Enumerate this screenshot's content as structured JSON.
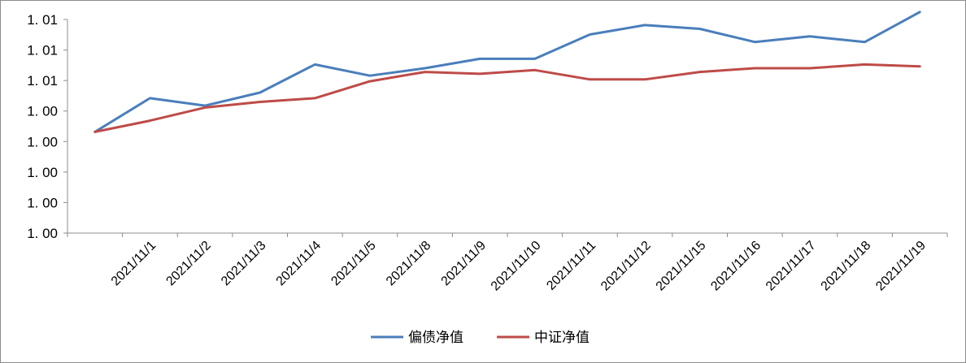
{
  "chart_data": {
    "type": "line",
    "title": "",
    "xlabel": "",
    "ylabel": "",
    "categories": [
      "",
      "2021/11/1",
      "2021/11/2",
      "2021/11/3",
      "2021/11/4",
      "2021/11/5",
      "2021/11/8",
      "2021/11/9",
      "2021/11/10",
      "2021/11/11",
      "2021/11/12",
      "2021/11/15",
      "2021/11/16",
      "2021/11/17",
      "2021/11/18",
      "2021/11/19"
    ],
    "y_tick_labels": [
      "1. 01",
      "1. 01",
      "1. 01",
      "1. 00",
      "1. 00",
      "1. 00",
      "1. 00",
      "1. 00"
    ],
    "ylim": [
      0.9986,
      1.01
    ],
    "grid": false,
    "legend_position": "bottom",
    "series": [
      {
        "name": "偏债净值",
        "color": "#4a7ebb",
        "values": [
          1.004,
          1.0058,
          1.0054,
          1.0061,
          1.0076,
          1.007,
          1.0074,
          1.0079,
          1.0079,
          1.0092,
          1.0097,
          1.0095,
          1.0088,
          1.0091,
          1.0088,
          1.0104
        ]
      },
      {
        "name": "中证净值",
        "color": "#be4b48",
        "values": [
          1.004,
          1.0046,
          1.0053,
          1.0056,
          1.0058,
          1.0067,
          1.0072,
          1.0071,
          1.0073,
          1.0068,
          1.0068,
          1.0072,
          1.0074,
          1.0074,
          1.0076,
          1.0075
        ]
      }
    ]
  }
}
